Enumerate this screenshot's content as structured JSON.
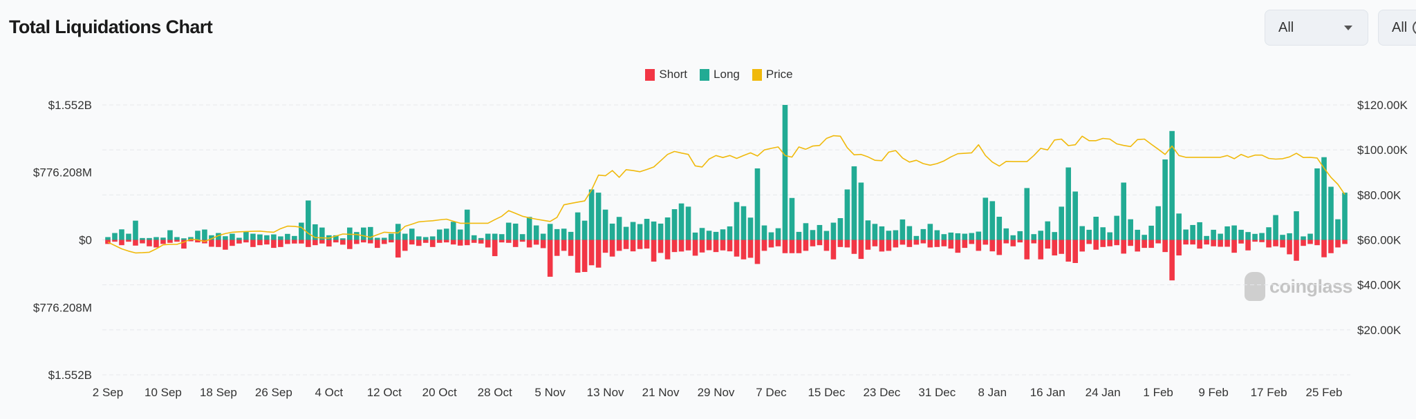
{
  "header": {
    "title": "Total Liquidations Chart",
    "dropdown1": "All",
    "dropdown2": "All"
  },
  "watermark": "coinglass",
  "colors": {
    "short": "#f23645",
    "long": "#22ab94",
    "price": "#f0b90b",
    "grid": "#e6e8eb"
  },
  "chart_data": {
    "type": "bar",
    "title": "Total Liquidations Chart",
    "legend": [
      "Short",
      "Long",
      "Price"
    ],
    "legend_position": "top-center",
    "left_axis": {
      "ticks": [
        "$1.552B",
        "$776.208M",
        "$0",
        "$776.208M",
        "$1.552B"
      ],
      "values": [
        1552,
        776.208,
        0,
        -776.208,
        -1552
      ],
      "range": [
        -1552,
        1552
      ],
      "unit": "USD millions"
    },
    "right_axis": {
      "ticks": [
        "$120.00K",
        "$100.00K",
        "$80.00K",
        "$60.00K",
        "$40.00K",
        "$20.00K"
      ],
      "values": [
        120,
        100,
        80,
        60,
        40,
        20
      ],
      "range": [
        0,
        120
      ],
      "unit": "USD thousands"
    },
    "x_ticks": [
      "2 Sep",
      "10 Sep",
      "18 Sep",
      "26 Sep",
      "4 Oct",
      "12 Oct",
      "20 Oct",
      "28 Oct",
      "5 Nov",
      "13 Nov",
      "21 Nov",
      "29 Nov",
      "7 Dec",
      "15 Dec",
      "23 Dec",
      "31 Dec",
      "8 Jan",
      "16 Jan",
      "24 Jan",
      "1 Feb",
      "9 Feb",
      "17 Feb",
      "25 Feb"
    ],
    "x_tick_step_days": 8,
    "x_start": "2 Sep",
    "x_end": "28 Feb",
    "grid": true,
    "series": [
      {
        "name": "Long",
        "unit": "USD millions",
        "values": [
          32,
          79,
          121,
          71,
          221,
          21,
          21,
          32,
          26,
          111,
          32,
          18,
          32,
          105,
          119,
          53,
          79,
          42,
          71,
          24,
          95,
          71,
          63,
          53,
          63,
          40,
          69,
          45,
          198,
          453,
          179,
          142,
          53,
          53,
          18,
          142,
          90,
          142,
          148,
          24,
          24,
          71,
          184,
          71,
          129,
          40,
          32,
          40,
          119,
          129,
          208,
          119,
          348,
          53,
          21,
          71,
          71,
          66,
          198,
          187,
          66,
          264,
          166,
          71,
          184,
          124,
          129,
          92,
          316,
          221,
          580,
          543,
          348,
          187,
          264,
          150,
          206,
          182,
          242,
          211,
          187,
          258,
          353,
          419,
          382,
          84,
          137,
          105,
          92,
          121,
          155,
          435,
          387,
          256,
          822,
          166,
          87,
          134,
          1552,
          482,
          92,
          192,
          113,
          171,
          103,
          198,
          250,
          580,
          846,
          659,
          224,
          184,
          155,
          105,
          111,
          235,
          158,
          45,
          124,
          184,
          111,
          66,
          84,
          76,
          71,
          79,
          95,
          485,
          445,
          266,
          132,
          53,
          100,
          596,
          66,
          105,
          213,
          90,
          382,
          833,
          556,
          158,
          116,
          266,
          145,
          87,
          277,
          659,
          237,
          116,
          58,
          163,
          387,
          925,
          1252,
          303,
          119,
          171,
          203,
          45,
          116,
          71,
          155,
          166,
          116,
          90,
          69,
          79,
          145,
          285,
          58,
          76,
          329,
          40,
          71,
          822,
          951,
          611,
          237,
          543
        ]
      },
      {
        "name": "Short",
        "unit": "USD millions",
        "values": [
          47,
          21,
          61,
          21,
          66,
          40,
          74,
          87,
          47,
          34,
          21,
          100,
          16,
          29,
          40,
          79,
          82,
          113,
          69,
          42,
          29,
          82,
          61,
          53,
          92,
          82,
          47,
          42,
          42,
          82,
          61,
          42,
          76,
          29,
          55,
          105,
          47,
          29,
          40,
          92,
          47,
          29,
          203,
          126,
          53,
          69,
          34,
          82,
          34,
          29,
          53,
          66,
          61,
          34,
          42,
          87,
          187,
          29,
          34,
          82,
          21,
          87,
          55,
          95,
          424,
          184,
          126,
          184,
          377,
          369,
          292,
          319,
          148,
          192,
          126,
          105,
          132,
          105,
          100,
          250,
          150,
          224,
          140,
          134,
          121,
          182,
          145,
          119,
          140,
          121,
          132,
          192,
          224,
          206,
          277,
          126,
          87,
          74,
          153,
          153,
          153,
          126,
          74,
          61,
          126,
          224,
          82,
          87,
          161,
          219,
          113,
          74,
          134,
          126,
          87,
          55,
          82,
          55,
          40,
          87,
          82,
          74,
          100,
          148,
          92,
          47,
          126,
          55,
          132,
          174,
          40,
          74,
          29,
          224,
          40,
          224,
          100,
          179,
          161,
          250,
          266,
          134,
          47,
          113,
          82,
          74,
          61,
          158,
          69,
          134,
          92,
          92,
          40,
          140,
          466,
          179,
          53,
          53,
          100,
          53,
          74,
          79,
          79,
          148,
          42,
          121,
          21,
          26,
          87,
          74,
          87,
          166,
          240,
          69,
          47,
          61,
          200,
          153,
          87,
          47
        ]
      },
      {
        "name": "Price",
        "unit": "USD thousands",
        "values": [
          59,
          57.5,
          56,
          55,
          54.2,
          54.3,
          54.5,
          56,
          57.8,
          58,
          58,
          59,
          60.3,
          60,
          59.3,
          60.5,
          61.9,
          62.8,
          63.4,
          63.6,
          63.7,
          63.8,
          63.9,
          63.6,
          63.4,
          65,
          66.1,
          66,
          65.6,
          62.9,
          61,
          60.9,
          60.8,
          61.7,
          62.6,
          62.5,
          62.4,
          61.8,
          61.1,
          62.3,
          63.4,
          63.2,
          63.1,
          66,
          67,
          68,
          68.3,
          68.5,
          68.9,
          69.2,
          68.3,
          67.4,
          67.4,
          67.4,
          67.4,
          67.4,
          69,
          70.5,
          73,
          71.8,
          70.5,
          69.8,
          69.2,
          68.7,
          68.2,
          70,
          75.6,
          76.2,
          76.8,
          77.3,
          82.2,
          88.8,
          88.5,
          90.8,
          87.8,
          91.2,
          90.8,
          90.3,
          91.3,
          92.4,
          95.2,
          98,
          99.3,
          98.6,
          98,
          92.9,
          92.4,
          95.9,
          97.5,
          96.6,
          97.5,
          96.2,
          97.5,
          98.7,
          97.3,
          100,
          100.7,
          101.3,
          97.5,
          96.8,
          101.3,
          100.3,
          101.7,
          102,
          105.1,
          106.3,
          106.1,
          101,
          97.8,
          98,
          96.9,
          95.4,
          95.2,
          99,
          99.7,
          96.4,
          94.6,
          95.4,
          93.9,
          93.2,
          93.9,
          95.1,
          96.9,
          98.3,
          98.5,
          98.7,
          102.3,
          97.5,
          94.6,
          92.8,
          94.9,
          94.8,
          94.8,
          94.8,
          97.5,
          100.7,
          100,
          104.4,
          104.8,
          101.9,
          102.3,
          106.1,
          104.1,
          104.1,
          105.1,
          104.8,
          102.7,
          102,
          101.5,
          104.6,
          104.8,
          102.5,
          100.3,
          98,
          101.7,
          97.5,
          96.7,
          96.7,
          96.7,
          96.7,
          96.7,
          96.7,
          97.5,
          96.1,
          98,
          96.7,
          97.7,
          97.7,
          96.2,
          95.9,
          96.1,
          96.9,
          98.5,
          96.6,
          96.7,
          96.4,
          91.9,
          87.8,
          84.7,
          80.2
        ]
      }
    ]
  }
}
